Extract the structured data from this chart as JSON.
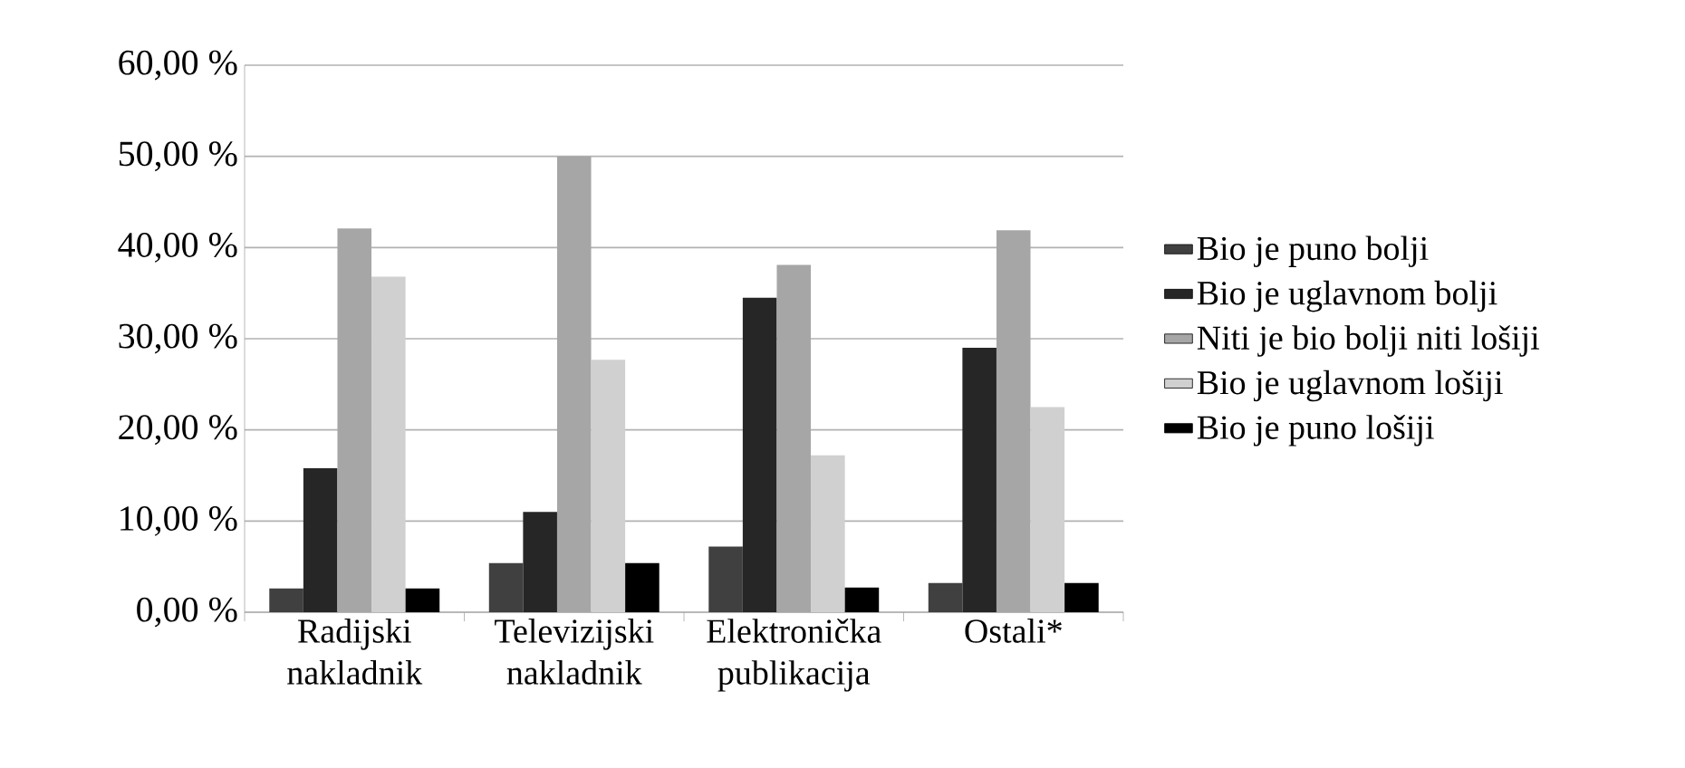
{
  "chart_data": {
    "type": "bar",
    "categories": [
      "Radijski nakladnik",
      "Televizijski nakladnik",
      "Elektronička publikacija",
      "Ostali*"
    ],
    "series": [
      {
        "name": "Bio je puno bolji",
        "color": "#404040",
        "values": [
          2.6,
          5.4,
          7.2,
          3.2
        ]
      },
      {
        "name": "Bio je uglavnom bolji",
        "color": "#262626",
        "values": [
          15.8,
          11.0,
          34.5,
          29.0
        ]
      },
      {
        "name": "Niti je bio bolji niti lošiji",
        "color": "#a6a6a6",
        "values": [
          42.1,
          50.0,
          38.1,
          41.9
        ]
      },
      {
        "name": "Bio je uglavnom lošiji",
        "color": "#d0d0d0",
        "values": [
          36.8,
          27.7,
          17.2,
          22.5
        ]
      },
      {
        "name": "Bio je puno lošiji",
        "color": "#000000",
        "values": [
          2.6,
          5.4,
          2.7,
          3.2
        ]
      }
    ],
    "ylim": [
      0,
      60
    ],
    "yticks": [
      {
        "value": 0,
        "label": "0,00 %"
      },
      {
        "value": 10,
        "label": "10,00 %"
      },
      {
        "value": 20,
        "label": "20,00 %"
      },
      {
        "value": 30,
        "label": "30,00 %"
      },
      {
        "value": 40,
        "label": "40,00 %"
      },
      {
        "value": 50,
        "label": "50,00 %"
      },
      {
        "value": 60,
        "label": "60,00 %"
      }
    ],
    "grid": "y",
    "legend": "right"
  }
}
